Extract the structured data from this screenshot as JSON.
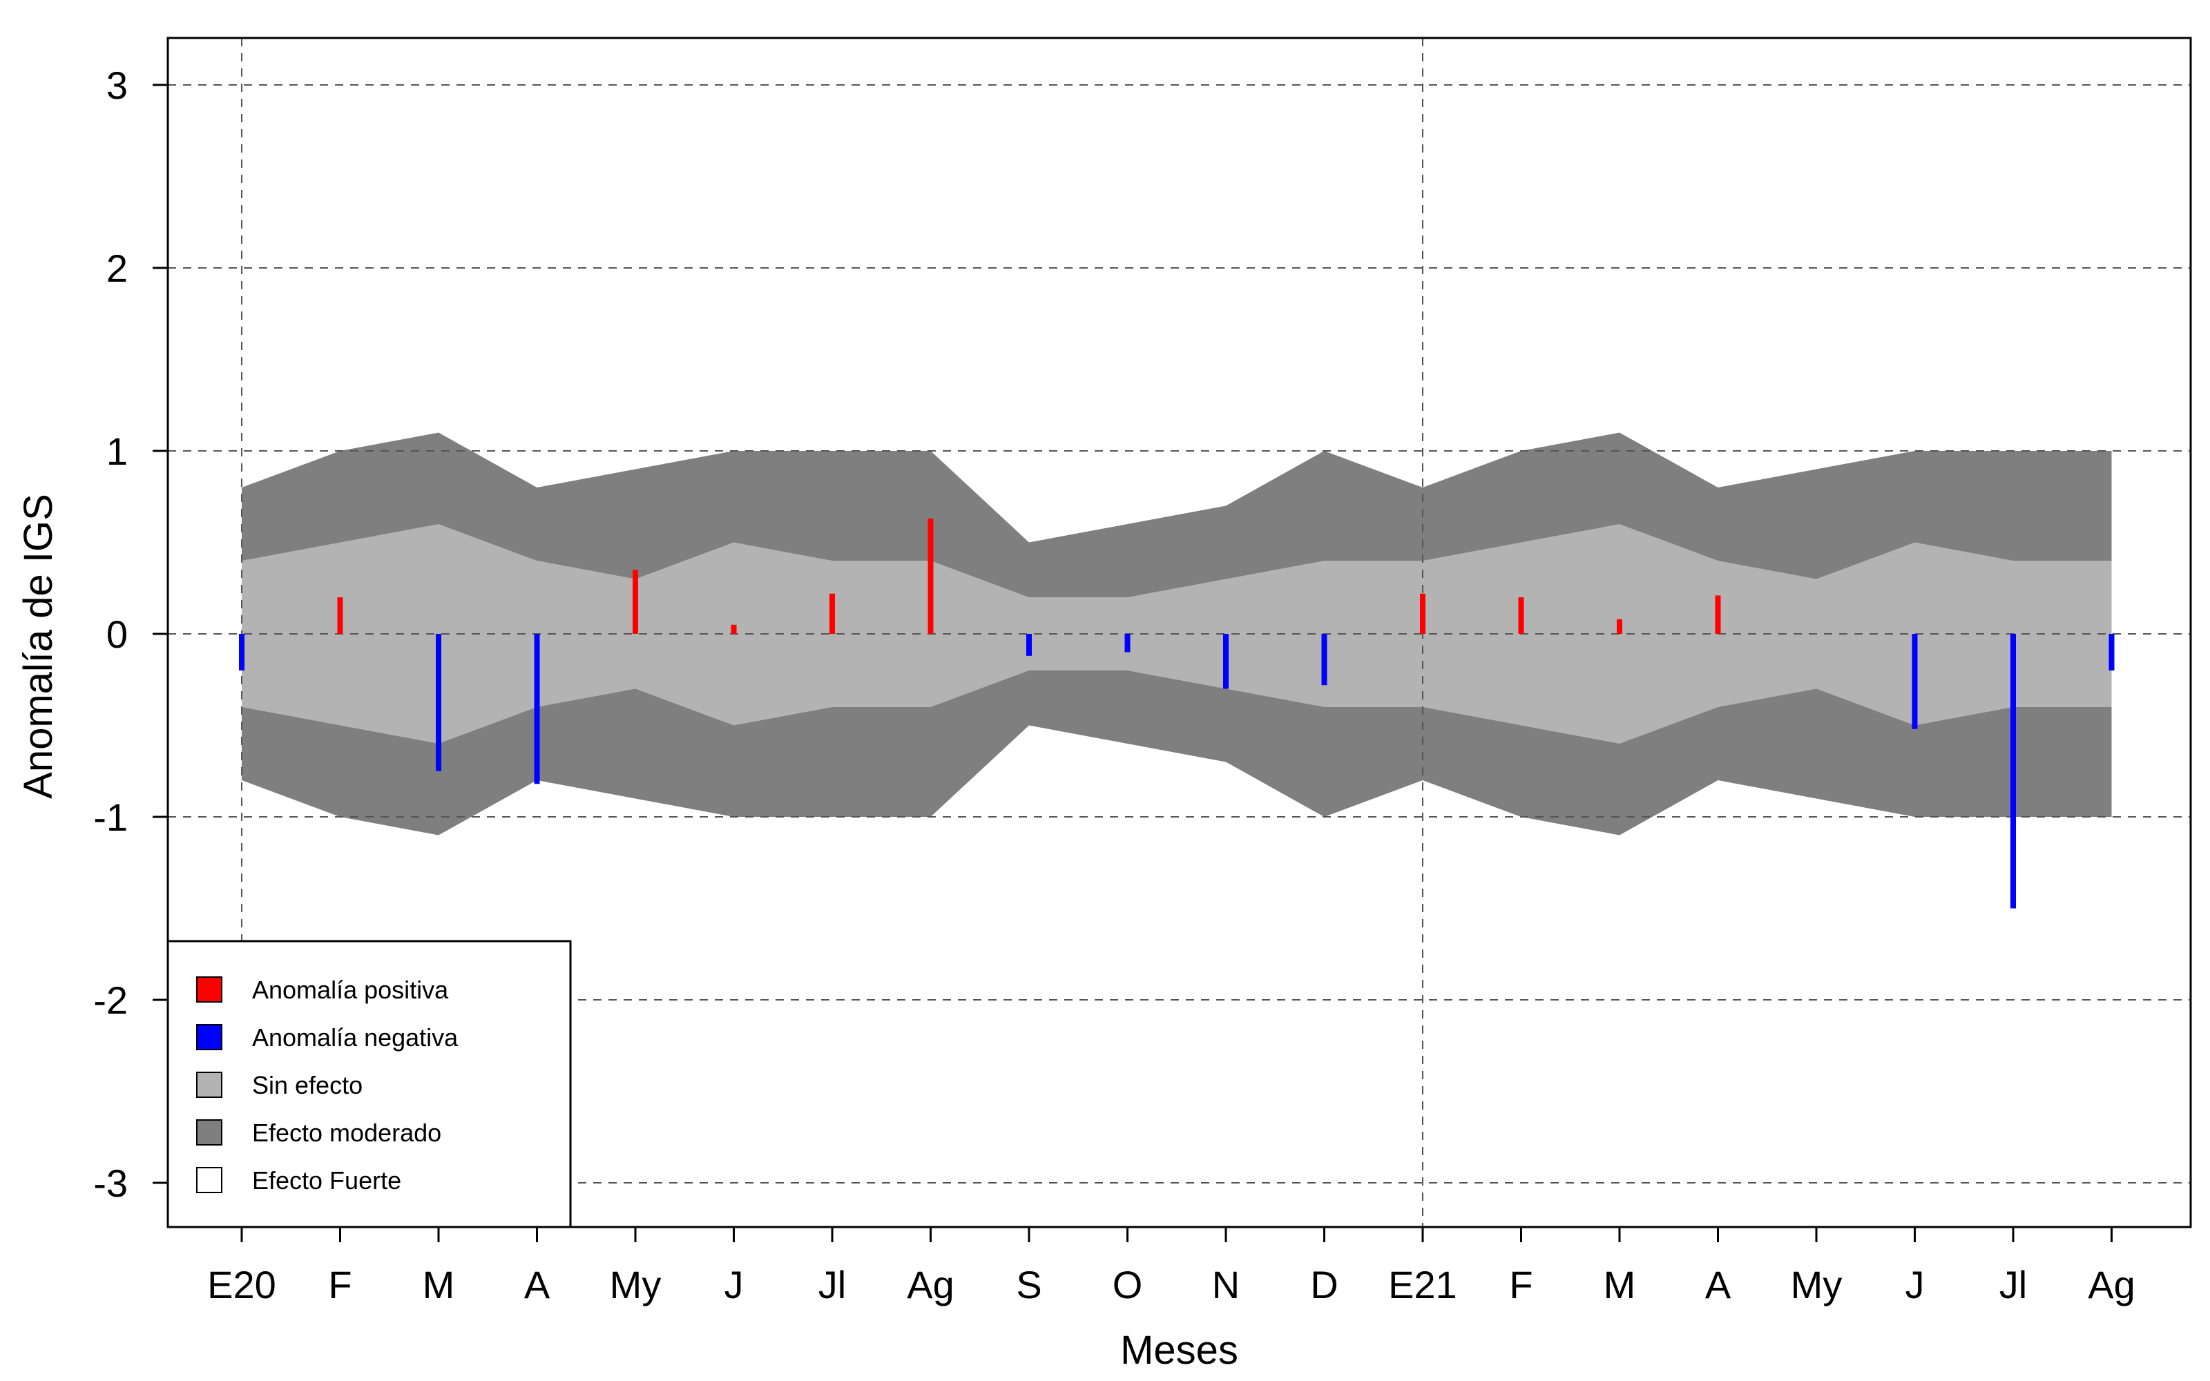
{
  "chart_data": {
    "type": "bar",
    "xlabel": "Meses",
    "ylabel": "Anomalía de IGS",
    "ylim": [
      -3,
      3
    ],
    "yticks": [
      -3,
      -2,
      -1,
      0,
      1,
      2,
      3
    ],
    "ytick_labels": [
      "-3",
      "-2",
      "-1",
      "0",
      "1",
      "2",
      "3"
    ],
    "categories": [
      "E20",
      "F",
      "M",
      "A",
      "My",
      "J",
      "Jl",
      "Ag",
      "S",
      "O",
      "N",
      "D",
      "E21",
      "F",
      "M",
      "A",
      "My",
      "J",
      "Jl",
      "Ag"
    ],
    "values": [
      -0.2,
      0.2,
      -0.75,
      -0.82,
      0.35,
      0.05,
      0.22,
      0.63,
      -0.12,
      -0.1,
      -0.3,
      -0.28,
      0.22,
      0.2,
      0.08,
      0.21,
      null,
      -0.52,
      -1.5,
      -0.2
    ],
    "sin_efecto_upper": [
      0.4,
      0.5,
      0.6,
      0.4,
      0.3,
      0.5,
      0.4,
      0.4,
      0.2,
      0.2,
      0.3,
      0.4,
      0.4,
      0.5,
      0.6,
      0.4,
      0.3,
      0.5,
      0.4,
      0.4
    ],
    "sin_efecto_lower": [
      -0.4,
      -0.5,
      -0.6,
      -0.4,
      -0.3,
      -0.5,
      -0.4,
      -0.4,
      -0.2,
      -0.2,
      -0.3,
      -0.4,
      -0.4,
      -0.5,
      -0.6,
      -0.4,
      -0.3,
      -0.5,
      -0.4,
      -0.4
    ],
    "moderado_upper": [
      0.8,
      1.0,
      1.1,
      0.8,
      0.9,
      1.0,
      1.0,
      1.0,
      0.5,
      0.6,
      0.7,
      1.0,
      0.8,
      1.0,
      1.1,
      0.8,
      0.9,
      1.0,
      1.0,
      1.0
    ],
    "moderado_lower": [
      -0.8,
      -1.0,
      -1.1,
      -0.8,
      -0.9,
      -1.0,
      -1.0,
      -1.0,
      -0.5,
      -0.6,
      -0.7,
      -1.0,
      -0.8,
      -1.0,
      -1.1,
      -0.8,
      -0.9,
      -1.0,
      -1.0,
      -1.0
    ],
    "vertical_reference_lines_at": [
      "E20",
      "E21"
    ],
    "grid": "dashed horizontal at y ticks",
    "colors": {
      "positive": "#ff0000",
      "negative": "#0000ff",
      "sin_efecto": "#b3b3b3",
      "moderado": "#7f7f7f",
      "fuerte": "#ffffff"
    },
    "legend": {
      "position": "bottom-left",
      "entries": [
        {
          "label": "Anomalía positiva",
          "color": "#ff0000"
        },
        {
          "label": "Anomalía negativa",
          "color": "#0000ff"
        },
        {
          "label": "Sin efecto",
          "color": "#b3b3b3"
        },
        {
          "label": "Efecto moderado",
          "color": "#7f7f7f"
        },
        {
          "label": "Efecto Fuerte",
          "color": "#ffffff"
        }
      ]
    }
  }
}
